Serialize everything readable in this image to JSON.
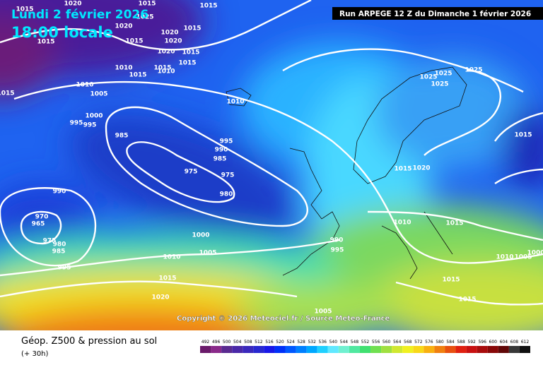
{
  "header": {
    "date": "Lundi 2 février 2026",
    "time": "18:00 locale",
    "run": "Run ARPEGE 12 Z du Dimanche 1 février 2026"
  },
  "copyright": "Copyright © 2026 Meteociel.fr / Source Meteo-France",
  "footer": {
    "title": "Géop. Z500 & pression au sol",
    "lead": "(+ 30h)"
  },
  "colorbar": {
    "ticks": [
      492,
      496,
      500,
      504,
      508,
      512,
      516,
      520,
      524,
      528,
      532,
      536,
      540,
      544,
      548,
      552,
      556,
      560,
      564,
      568,
      572,
      576,
      580,
      584,
      588,
      592,
      596,
      600,
      604,
      608,
      612
    ],
    "colors": [
      "#6a1a6a",
      "#8a2a8a",
      "#5a2a90",
      "#4a28a8",
      "#3a28bc",
      "#2828d0",
      "#1818e8",
      "#0030f8",
      "#0058ff",
      "#0080ff",
      "#00a8ff",
      "#20d0ff",
      "#60e8ff",
      "#70f0d0",
      "#50e8a0",
      "#40e070",
      "#70e050",
      "#a0e040",
      "#d0e830",
      "#f0f020",
      "#f8d818",
      "#f8b010",
      "#f08010",
      "#e85010",
      "#e02010",
      "#c81010",
      "#a80c0c",
      "#880808",
      "#600808",
      "#383838",
      "#101010"
    ]
  },
  "isobar_labels": [
    1015,
    1020,
    1015,
    1015,
    1025,
    1020,
    1015,
    1020,
    1015,
    1015,
    1020,
    1020,
    1015,
    1010,
    1015,
    1015,
    1010,
    1015,
    1010,
    1005,
    1015,
    1010,
    1000,
    995,
    995,
    985,
    995,
    990,
    985,
    975,
    975,
    980,
    990,
    970,
    965,
    975,
    980,
    985,
    1000,
    1005,
    995,
    1010,
    1015,
    1020,
    990,
    995,
    1010,
    1015,
    1015,
    1020,
    1015,
    1025,
    1025,
    1025,
    1025,
    1015,
    1015,
    1010,
    1005,
    1000,
    1005
  ]
}
